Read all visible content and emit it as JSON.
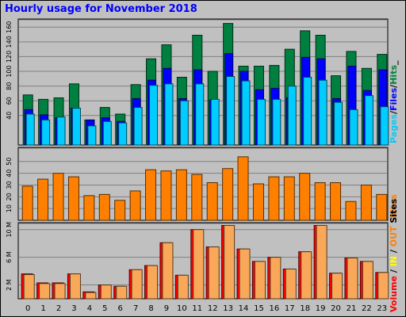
{
  "chart_data": [
    {
      "type": "bar",
      "title": "Hourly usage for November 2018",
      "label_parts": [
        {
          "text": "Pages",
          "color": "#00ccff"
        },
        {
          "text": "/",
          "color": "#000000"
        },
        {
          "text": "Files",
          "color": "#0000ff"
        },
        {
          "text": "/",
          "color": "#000000"
        },
        {
          "text": "Hits",
          "color": "#008040"
        },
        {
          "text": "_",
          "color": "#000000"
        }
      ],
      "categories": [
        "0",
        "1",
        "2",
        "3",
        "4",
        "5",
        "6",
        "7",
        "8",
        "9",
        "10",
        "11",
        "12",
        "13",
        "14",
        "15",
        "16",
        "17",
        "18",
        "19",
        "20",
        "21",
        "22",
        "23"
      ],
      "ylim": [
        0,
        171
      ],
      "ticks": [
        40,
        60,
        80,
        100,
        120,
        140,
        160
      ],
      "series": [
        {
          "name": "Hits",
          "color": "#008040",
          "values": [
            68,
            62,
            64,
            83,
            34,
            51,
            42,
            82,
            117,
            136,
            92,
            149,
            100,
            165,
            107,
            107,
            108,
            130,
            155,
            149,
            94,
            127,
            104,
            123
          ]
        },
        {
          "name": "Files",
          "color": "#0000ff",
          "values": [
            48,
            41,
            37,
            50,
            34,
            37,
            32,
            63,
            88,
            104,
            63,
            102,
            61,
            124,
            100,
            75,
            77,
            64,
            119,
            117,
            63,
            107,
            74,
            102
          ]
        },
        {
          "name": "Pages",
          "color": "#00ccff",
          "values": [
            42,
            34,
            38,
            50,
            26,
            32,
            30,
            51,
            81,
            83,
            60,
            83,
            62,
            93,
            87,
            62,
            62,
            80,
            92,
            88,
            58,
            48,
            67,
            52
          ]
        }
      ]
    },
    {
      "type": "bar",
      "categories": [
        "0",
        "1",
        "2",
        "3",
        "4",
        "5",
        "6",
        "7",
        "8",
        "9",
        "10",
        "11",
        "12",
        "13",
        "14",
        "15",
        "16",
        "17",
        "18",
        "19",
        "20",
        "21",
        "22",
        "23"
      ],
      "ylim": [
        0,
        62
      ],
      "ticks": [
        10,
        20,
        30,
        40,
        50
      ],
      "label": "Sites",
      "label_color": "#ff8000",
      "series": [
        {
          "name": "Sites",
          "color": "#ff8000",
          "values": [
            29,
            35,
            40,
            37,
            21,
            22,
            17,
            25,
            43,
            42,
            43,
            39,
            32,
            44,
            54,
            31,
            37,
            37,
            40,
            32,
            32,
            16,
            30,
            22
          ]
        }
      ]
    },
    {
      "type": "bar",
      "categories": [
        "0",
        "1",
        "2",
        "3",
        "4",
        "5",
        "6",
        "7",
        "8",
        "9",
        "10",
        "11",
        "12",
        "13",
        "14",
        "15",
        "16",
        "17",
        "18",
        "19",
        "20",
        "21",
        "22",
        "23"
      ],
      "ylim": [
        0,
        11000000
      ],
      "ticks": [
        2000000,
        6000000,
        10000000
      ],
      "tick_labels": [
        "2 M",
        "6 M",
        "10 M"
      ],
      "label_parts": [
        {
          "text": "Volume",
          "color": "#ff0000"
        },
        {
          "text": " ",
          "color": "#000000"
        },
        {
          "text": "/",
          "color": "#000000"
        },
        {
          "text": " ",
          "color": "#000000"
        },
        {
          "text": "IN",
          "color": "#ffff00"
        },
        {
          "text": " / ",
          "color": "#000000"
        },
        {
          "text": "OUT",
          "color": "#ff8000"
        },
        {
          "text": " ",
          "color": "#000000"
        },
        {
          "text": "Sites",
          "color": "#000000"
        }
      ],
      "series": [
        {
          "name": "Volume",
          "color": "#ff0000",
          "values": [
            3600000,
            2300000,
            2300000,
            3600000,
            1000000,
            2000000,
            1800000,
            4200000,
            4800000,
            8100000,
            3400000,
            10000000,
            7500000,
            10600000,
            7200000,
            5400000,
            6000000,
            4300000,
            6800000,
            10600000,
            3700000,
            5900000,
            5400000,
            3800000
          ]
        },
        {
          "name": "OUT",
          "color": "#f8a858",
          "values": [
            3500000,
            2200000,
            2200000,
            3600000,
            900000,
            2000000,
            1800000,
            4200000,
            4800000,
            8100000,
            3400000,
            10000000,
            7500000,
            10600000,
            7200000,
            5400000,
            6000000,
            4300000,
            6800000,
            10600000,
            3700000,
            5900000,
            5400000,
            3800000
          ]
        }
      ]
    }
  ]
}
